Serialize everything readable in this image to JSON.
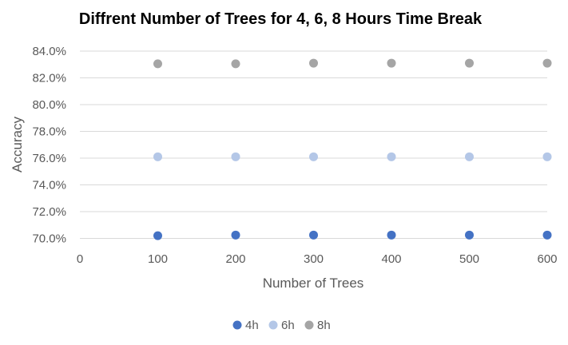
{
  "chart_data": {
    "type": "scatter",
    "title": "Diffrent Number of Trees for 4, 6, 8 Hours Time Break",
    "xlabel": "Number of Trees",
    "ylabel": "Accuracy",
    "xlim": [
      0,
      600
    ],
    "ylim": [
      0.695,
      0.84
    ],
    "x_ticks": [
      0,
      100,
      200,
      300,
      400,
      500,
      600
    ],
    "x_tick_labels": [
      "0",
      "100",
      "200",
      "300",
      "400",
      "500",
      "600"
    ],
    "y_ticks": [
      0.7,
      0.72,
      0.74,
      0.76,
      0.78,
      0.8,
      0.82,
      0.84
    ],
    "y_tick_labels": [
      "70.0%",
      "72.0%",
      "74.0%",
      "76.0%",
      "78.0%",
      "80.0%",
      "82.0%",
      "84.0%"
    ],
    "grid": true,
    "legend_position": "bottom",
    "series": [
      {
        "name": "4h",
        "color": "#4472c4",
        "x": [
          100,
          200,
          300,
          400,
          500,
          600
        ],
        "y": [
          0.702,
          0.7025,
          0.7025,
          0.7025,
          0.7025,
          0.7025
        ]
      },
      {
        "name": "6h",
        "color": "#b4c7e7",
        "x": [
          100,
          200,
          300,
          400,
          500,
          600
        ],
        "y": [
          0.761,
          0.761,
          0.761,
          0.761,
          0.761,
          0.761
        ]
      },
      {
        "name": "8h",
        "color": "#a5a5a5",
        "x": [
          100,
          200,
          300,
          400,
          500,
          600
        ],
        "y": [
          0.8305,
          0.8305,
          0.831,
          0.831,
          0.831,
          0.831
        ]
      }
    ]
  }
}
